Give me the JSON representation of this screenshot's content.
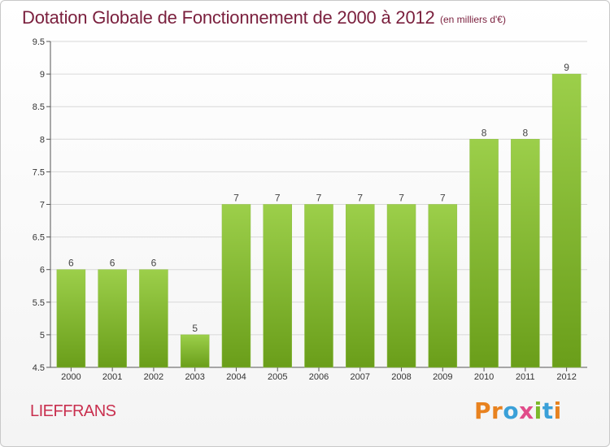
{
  "commune": "LIEFFRANS",
  "brand": {
    "letters": [
      {
        "ch": "P",
        "color": "#e8821f"
      },
      {
        "ch": "r",
        "color": "#e8821f"
      },
      {
        "ch": "o",
        "color": "#3aa0d8"
      },
      {
        "ch": "x",
        "color": "#e14c8a"
      },
      {
        "ch": "i",
        "color": "#7cb92a"
      },
      {
        "ch": "t",
        "color": "#3aa0d8"
      },
      {
        "ch": "i",
        "color": "#e8821f"
      }
    ]
  },
  "colors": {
    "bar_top": "#9ccf4a",
    "bar_bottom": "#6a9e1a",
    "title": "#7a1f3d",
    "commune": "#c9304f",
    "grid": "#d8d8d8"
  },
  "chart_data": {
    "type": "bar",
    "title": "Dotation Globale de Fonctionnement de 2000 à 2012",
    "subtitle": "(en milliers d'€)",
    "xlabel": "",
    "ylabel": "",
    "categories": [
      "2000",
      "2001",
      "2002",
      "2003",
      "2004",
      "2005",
      "2006",
      "2007",
      "2008",
      "2009",
      "2010",
      "2011",
      "2012"
    ],
    "values": [
      6,
      6,
      6,
      5,
      7,
      7,
      7,
      7,
      7,
      7,
      8,
      8,
      9
    ],
    "data_labels": [
      "6",
      "6",
      "6",
      "5",
      "7",
      "7",
      "7",
      "7",
      "7",
      "7",
      "8",
      "8",
      "9"
    ],
    "ylim": [
      4.5,
      9.5
    ],
    "yticks": [
      4.5,
      5,
      5.5,
      6,
      6.5,
      7,
      7.5,
      8,
      8.5,
      9,
      9.5
    ],
    "ytick_labels": [
      "4.5",
      "5",
      "5.5",
      "6",
      "6.5",
      "7",
      "7.5",
      "8",
      "8.5",
      "9",
      "9.5"
    ],
    "grid": true,
    "legend": "none"
  }
}
